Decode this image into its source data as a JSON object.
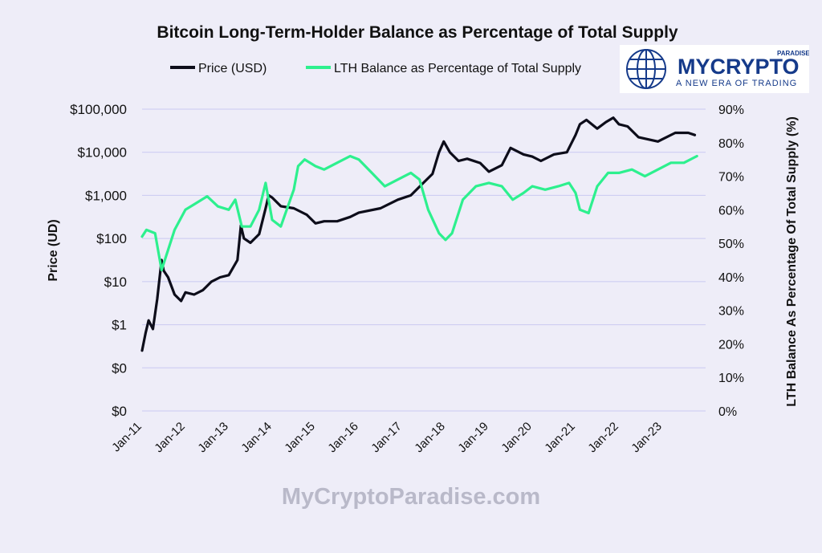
{
  "chart_data": {
    "type": "line",
    "title": "Bitcoin Long-Term-Holder Balance as Percentage of Total Supply",
    "legend": [
      "Price (USD)",
      "LTH Balance as Percentage of Total Supply"
    ],
    "ylabel_left": "Price (UD)",
    "ylabel_right": "LTH Balance As Percentage Of Total Supply (%)",
    "x_ticks": [
      "Jan-11",
      "Jan-12",
      "Jan-13",
      "Jan-14",
      "Jan-15",
      "Jan-16",
      "Jan-17",
      "Jan-18",
      "Jan-19",
      "Jan-20",
      "Jan-21",
      "Jan-22",
      "Jan-23"
    ],
    "y_left_ticks": [
      "$100,000",
      "$10,000",
      "$1,000",
      "$100",
      "$10",
      "$1",
      "$0",
      "$0"
    ],
    "y_right_ticks": [
      "90%",
      "80%",
      "70%",
      "60%",
      "50%",
      "40%",
      "30%",
      "20%",
      "10%",
      "0%"
    ],
    "y_right_range": [
      0,
      90
    ],
    "series": [
      {
        "name": "Price (USD)",
        "color": "#0d0d1a",
        "scale": "left_log_decades",
        "x": [
          2011.0,
          2011.08,
          2011.15,
          2011.25,
          2011.35,
          2011.45,
          2011.5,
          2011.6,
          2011.75,
          2011.9,
          2012.0,
          2012.2,
          2012.4,
          2012.6,
          2012.8,
          2013.0,
          2013.2,
          2013.28,
          2013.35,
          2013.5,
          2013.7,
          2013.85,
          2013.92,
          2014.0,
          2014.2,
          2014.5,
          2014.8,
          2015.0,
          2015.2,
          2015.5,
          2015.8,
          2016.0,
          2016.5,
          2016.9,
          2017.2,
          2017.5,
          2017.7,
          2017.85,
          2017.96,
          2018.1,
          2018.3,
          2018.5,
          2018.8,
          2019.0,
          2019.3,
          2019.5,
          2019.8,
          2020.0,
          2020.2,
          2020.5,
          2020.8,
          2021.0,
          2021.1,
          2021.25,
          2021.5,
          2021.7,
          2021.87,
          2022.0,
          2022.2,
          2022.45,
          2022.9,
          2023.0,
          2023.3,
          2023.6,
          2023.75
        ],
        "values": [
          -0.6,
          -0.2,
          0.1,
          -0.1,
          0.6,
          1.5,
          1.25,
          1.1,
          0.7,
          0.55,
          0.75,
          0.7,
          0.8,
          1.0,
          1.1,
          1.15,
          1.5,
          2.3,
          2.0,
          1.9,
          2.1,
          2.7,
          3.0,
          2.95,
          2.75,
          2.7,
          2.55,
          2.35,
          2.4,
          2.4,
          2.5,
          2.6,
          2.7,
          2.9,
          3.0,
          3.3,
          3.5,
          4.0,
          4.25,
          4.0,
          3.8,
          3.85,
          3.75,
          3.55,
          3.7,
          4.1,
          3.95,
          3.9,
          3.8,
          3.95,
          4.0,
          4.4,
          4.65,
          4.75,
          4.55,
          4.7,
          4.8,
          4.65,
          4.6,
          4.35,
          4.25,
          4.3,
          4.45,
          4.45,
          4.4
        ]
      },
      {
        "name": "LTH Balance as Percentage of Total Supply",
        "color": "#2df08e",
        "scale": "right_percent",
        "x": [
          2011.0,
          2011.1,
          2011.3,
          2011.45,
          2011.55,
          2011.75,
          2012.0,
          2012.25,
          2012.5,
          2012.75,
          2013.0,
          2013.15,
          2013.3,
          2013.5,
          2013.7,
          2013.85,
          2014.0,
          2014.2,
          2014.5,
          2014.6,
          2014.75,
          2015.0,
          2015.2,
          2015.5,
          2015.8,
          2016.0,
          2016.3,
          2016.6,
          2016.9,
          2017.2,
          2017.4,
          2017.6,
          2017.85,
          2018.0,
          2018.15,
          2018.4,
          2018.7,
          2019.0,
          2019.3,
          2019.55,
          2019.8,
          2020.0,
          2020.3,
          2020.6,
          2020.85,
          2021.0,
          2021.1,
          2021.3,
          2021.5,
          2021.75,
          2022.0,
          2022.3,
          2022.6,
          2022.9,
          2023.2,
          2023.5,
          2023.8
        ],
        "values": [
          52,
          54,
          53,
          42,
          46,
          54,
          60,
          62,
          64,
          61,
          60,
          63,
          55,
          55,
          60,
          68,
          57,
          55,
          66,
          73,
          75,
          73,
          72,
          74,
          76,
          75,
          71,
          67,
          69,
          71,
          69,
          60,
          53,
          51,
          53,
          63,
          67,
          68,
          67,
          63,
          65,
          67,
          66,
          67,
          68,
          65,
          60,
          59,
          67,
          71,
          71,
          72,
          70,
          72,
          74,
          74,
          76
        ]
      }
    ]
  },
  "watermark": "MyCryptoParadise.com",
  "logo": {
    "brand_main": "MYCRYPTO",
    "brand_small": "PARADISE",
    "tagline": "A NEW ERA OF TRADING",
    "color": "#153a8a"
  },
  "colors": {
    "background": "#eeedf8",
    "gridline": "#c9c9f2",
    "text": "#111111"
  }
}
